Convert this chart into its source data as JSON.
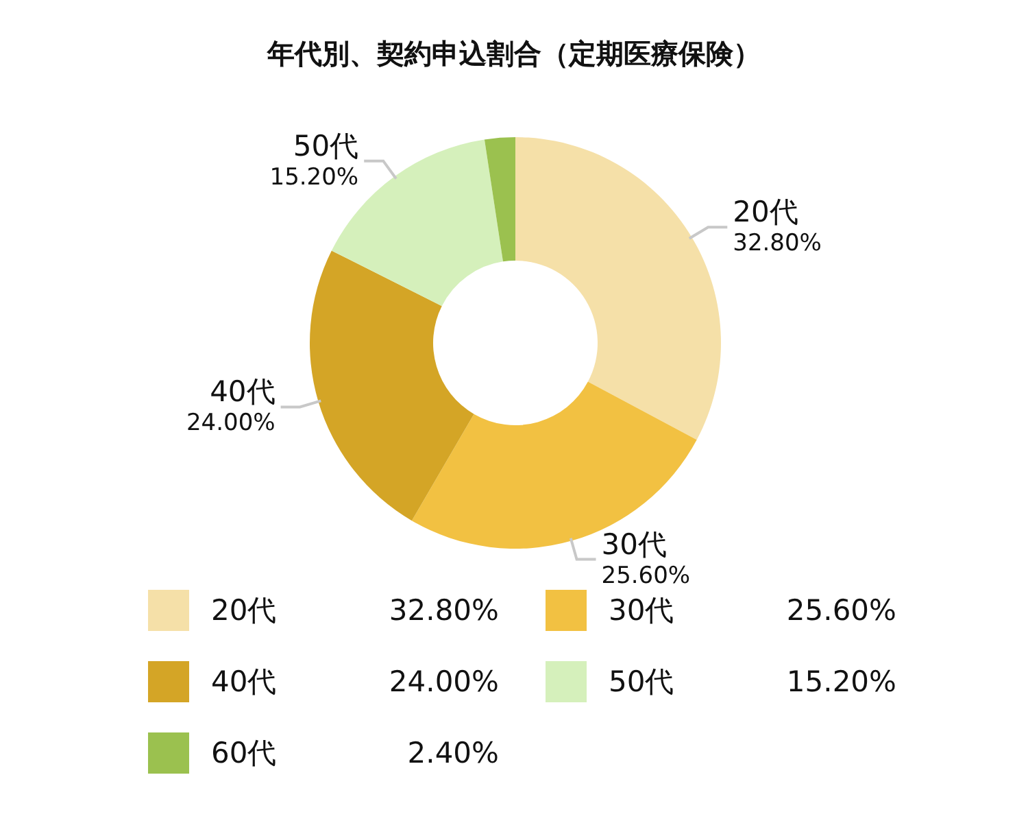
{
  "chart_data": {
    "type": "donut",
    "title": "年代別、契約申込割合（定期医療保険）",
    "categories": [
      "20代",
      "30代",
      "40代",
      "50代",
      "60代"
    ],
    "values": [
      32.8,
      25.6,
      24.0,
      15.2,
      2.4
    ],
    "value_labels": [
      "32.80%",
      "25.60%",
      "24.00%",
      "15.20%",
      "2.40%"
    ],
    "colors": [
      "#f5e0a8",
      "#f2c142",
      "#d4a526",
      "#d5f0bb",
      "#9bc14f"
    ],
    "legend": "bottom"
  }
}
